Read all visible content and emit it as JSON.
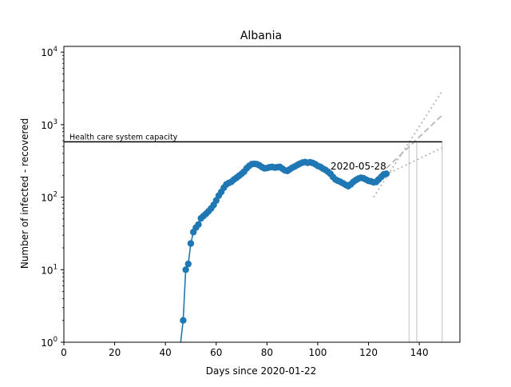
{
  "chart_data": {
    "type": "line",
    "title": "Albania",
    "xlabel": "Days since 2020-01-22",
    "ylabel": "Number of infected - recovered",
    "xlim": [
      0,
      156
    ],
    "ylim": [
      1,
      12000
    ],
    "yscale": "log",
    "xticks": [
      0,
      20,
      40,
      60,
      80,
      100,
      120,
      140
    ],
    "yticks": [
      {
        "value": 1,
        "label": "10",
        "exp": "0"
      },
      {
        "value": 10,
        "label": "10",
        "exp": "1"
      },
      {
        "value": 100,
        "label": "10",
        "exp": "2"
      },
      {
        "value": 1000,
        "label": "10",
        "exp": "3"
      },
      {
        "value": 10000,
        "label": "10",
        "exp": "4"
      }
    ],
    "grid": false,
    "series": [
      {
        "color": "#1f77b4",
        "marker": "circle",
        "points": [
          [
            46,
            0.3
          ],
          [
            47,
            2
          ],
          [
            48,
            10
          ],
          [
            49,
            12
          ],
          [
            50,
            23
          ],
          [
            51,
            33
          ],
          [
            52,
            38
          ],
          [
            53,
            42
          ],
          [
            54,
            51
          ],
          [
            55,
            55
          ],
          [
            56,
            59
          ],
          [
            57,
            64
          ],
          [
            58,
            70
          ],
          [
            59,
            78
          ],
          [
            60,
            90
          ],
          [
            61,
            105
          ],
          [
            62,
            118
          ],
          [
            63,
            135
          ],
          [
            64,
            150
          ],
          [
            65,
            157
          ],
          [
            66,
            163
          ],
          [
            67,
            175
          ],
          [
            68,
            185
          ],
          [
            69,
            197
          ],
          [
            70,
            210
          ],
          [
            71,
            225
          ],
          [
            72,
            250
          ],
          [
            73,
            270
          ],
          [
            74,
            285
          ],
          [
            75,
            288
          ],
          [
            76,
            285
          ],
          [
            77,
            275
          ],
          [
            78,
            260
          ],
          [
            79,
            250
          ],
          [
            80,
            252
          ],
          [
            81,
            258
          ],
          [
            82,
            262
          ],
          [
            83,
            256
          ],
          [
            84,
            258
          ],
          [
            85,
            262
          ],
          [
            86,
            248
          ],
          [
            87,
            235
          ],
          [
            88,
            230
          ],
          [
            89,
            242
          ],
          [
            90,
            255
          ],
          [
            91,
            265
          ],
          [
            92,
            278
          ],
          [
            93,
            290
          ],
          [
            94,
            300
          ],
          [
            95,
            305
          ],
          [
            96,
            298
          ],
          [
            97,
            303
          ],
          [
            98,
            296
          ],
          [
            99,
            285
          ],
          [
            100,
            270
          ],
          [
            101,
            262
          ],
          [
            102,
            248
          ],
          [
            103,
            238
          ],
          [
            104,
            225
          ],
          [
            105,
            210
          ],
          [
            106,
            190
          ],
          [
            107,
            175
          ],
          [
            108,
            168
          ],
          [
            109,
            162
          ],
          [
            110,
            155
          ],
          [
            111,
            148
          ],
          [
            112,
            142
          ],
          [
            113,
            150
          ],
          [
            114,
            162
          ],
          [
            115,
            172
          ],
          [
            116,
            180
          ],
          [
            117,
            185
          ],
          [
            118,
            182
          ],
          [
            119,
            175
          ],
          [
            120,
            168
          ],
          [
            121,
            165
          ],
          [
            122,
            160
          ],
          [
            123,
            162
          ],
          [
            124,
            175
          ],
          [
            125,
            190
          ],
          [
            126,
            205
          ],
          [
            127,
            210
          ]
        ]
      }
    ],
    "capacity": {
      "value": 580,
      "x_start": 0,
      "x_end": 149,
      "label": "Health care system capacity"
    },
    "annotations": [
      {
        "text": "2020-05-28",
        "x": 127,
        "y": 240
      }
    ],
    "projections": [
      {
        "style": "dashed",
        "points": [
          [
            122,
            170
          ],
          [
            149,
            1350
          ]
        ]
      },
      {
        "style": "dotted",
        "points": [
          [
            122,
            100
          ],
          [
            149,
            2900
          ]
        ]
      },
      {
        "style": "dotted",
        "points": [
          [
            122,
            170
          ],
          [
            149,
            480
          ]
        ]
      }
    ],
    "vlines": [
      {
        "x": 136,
        "y_top": 580
      },
      {
        "x": 139,
        "y_top": 580
      },
      {
        "x": 149,
        "y_top": 580
      }
    ]
  }
}
